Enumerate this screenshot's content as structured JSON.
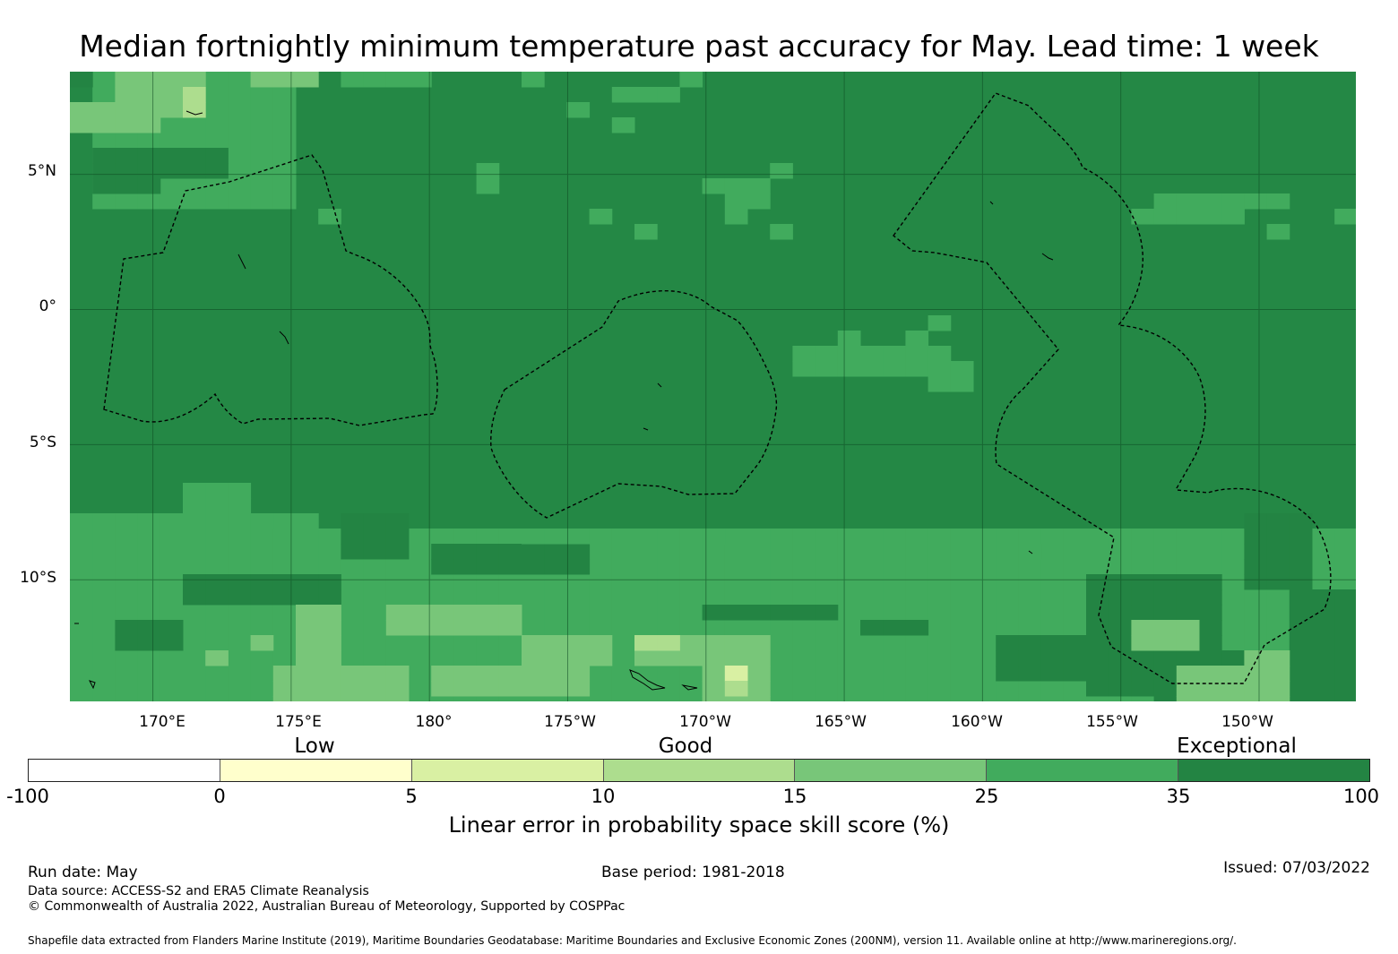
{
  "title": "Median fortnightly minimum temperature past accuracy for May. Lead time: 1 week",
  "map": {
    "lon_range": [
      167,
      213.5
    ],
    "lat_range": [
      -14.5,
      8.8
    ],
    "grid_lat": [
      5,
      0,
      -5,
      -10
    ],
    "grid_lon": [
      170,
      175,
      180,
      185,
      190,
      195,
      200,
      205,
      210
    ],
    "lat_labels": [
      "5°N",
      "0°",
      "5°S",
      "10°S"
    ],
    "lon_labels": [
      "170°E",
      "175°E",
      "180°",
      "175°W",
      "170°W",
      "165°W",
      "160°W",
      "155°W",
      "150°W"
    ],
    "background_class": "35–100",
    "category_colors": {
      "lt0": "#ffffff",
      "0-5": "#ffffcc",
      "5-10": "#d9f0a3",
      "10-15": "#addd8e",
      "15-25": "#78c679",
      "25-35": "#41ab5d",
      "35-100": "#238443"
    }
  },
  "colorbar": {
    "segments": [
      {
        "range": "-100 to 0",
        "color": "#ffffff"
      },
      {
        "range": "0 to 5",
        "color": "#ffffcc"
      },
      {
        "range": "5 to 10",
        "color": "#d9f0a3"
      },
      {
        "range": "10 to 15",
        "color": "#addd8e"
      },
      {
        "range": "15 to 25",
        "color": "#78c679"
      },
      {
        "range": "25 to 35",
        "color": "#41ab5d"
      },
      {
        "range": "35 to 100",
        "color": "#238443"
      }
    ],
    "ticks": [
      "-100",
      "0",
      "5",
      "10",
      "15",
      "25",
      "35",
      "100"
    ],
    "categories": [
      "Low",
      "Good",
      "Exceptional"
    ],
    "title": "Linear error in probability space skill score (%)"
  },
  "footer": {
    "run_date": "Run date: May",
    "base_period": "Base period: 1981-2018",
    "issued": "Issued: 07/03/2022",
    "data_source": "Data source: ACCESS-S2 and ERA5 Climate Reanalysis",
    "copyright": "© Commonwealth of Australia 2022, Australian Bureau of Meteorology, Supported by COSPPac",
    "shapefile": "Shapefile data extracted from Flanders Marine Institute (2019), Maritime Boundaries Geodatabase: Maritime Boundaries and Exclusive Economic Zones (200NM), version 11. Available online at http://www.marineregions.org/."
  }
}
